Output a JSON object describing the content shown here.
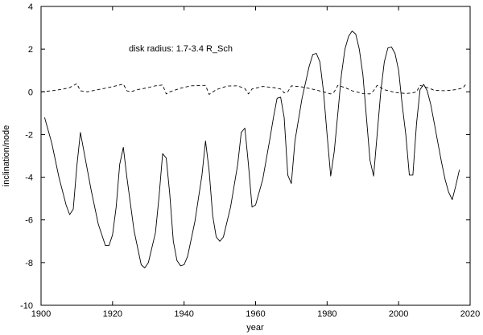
{
  "chart_data": {
    "type": "line",
    "title": "",
    "xlabel": "year",
    "ylabel": "inclination/node",
    "xlim": [
      1900,
      2020
    ],
    "ylim": [
      -10,
      4
    ],
    "grid": false,
    "x_ticks": [
      "1900",
      "1920",
      "1940",
      "1960",
      "1980",
      "2000",
      "2020"
    ],
    "y_ticks": [
      "4",
      "2",
      "0",
      "-2",
      "-4",
      "-6",
      "-8",
      "-10"
    ],
    "annotation": "disk radius: 1.7-3.4 R_Sch",
    "series": [
      {
        "style": "solid",
        "color": "#000000",
        "points": [
          [
            1901,
            -1.2
          ],
          [
            1903,
            -2.4
          ],
          [
            1905,
            -4.0
          ],
          [
            1907,
            -5.3
          ],
          [
            1908,
            -5.75
          ],
          [
            1909,
            -5.5
          ],
          [
            1910,
            -3.5
          ],
          [
            1911,
            -1.9
          ],
          [
            1912,
            -2.8
          ],
          [
            1914,
            -4.6
          ],
          [
            1916,
            -6.2
          ],
          [
            1918,
            -7.2
          ],
          [
            1919,
            -7.2
          ],
          [
            1920,
            -6.7
          ],
          [
            1921,
            -5.4
          ],
          [
            1922,
            -3.4
          ],
          [
            1923,
            -2.6
          ],
          [
            1924,
            -4.0
          ],
          [
            1926,
            -6.5
          ],
          [
            1928,
            -8.1
          ],
          [
            1929,
            -8.25
          ],
          [
            1930,
            -8.0
          ],
          [
            1932,
            -6.6
          ],
          [
            1933,
            -4.9
          ],
          [
            1934,
            -2.9
          ],
          [
            1935,
            -3.1
          ],
          [
            1936,
            -4.8
          ],
          [
            1937,
            -7.0
          ],
          [
            1938,
            -7.9
          ],
          [
            1939,
            -8.15
          ],
          [
            1940,
            -8.1
          ],
          [
            1941,
            -7.7
          ],
          [
            1943,
            -6.1
          ],
          [
            1945,
            -3.9
          ],
          [
            1946,
            -2.3
          ],
          [
            1947,
            -3.7
          ],
          [
            1948,
            -5.8
          ],
          [
            1949,
            -6.8
          ],
          [
            1950,
            -7.0
          ],
          [
            1951,
            -6.8
          ],
          [
            1953,
            -5.4
          ],
          [
            1955,
            -3.4
          ],
          [
            1956,
            -1.9
          ],
          [
            1957,
            -1.7
          ],
          [
            1958,
            -3.4
          ],
          [
            1959,
            -5.4
          ],
          [
            1960,
            -5.3
          ],
          [
            1962,
            -4.1
          ],
          [
            1964,
            -2.2
          ],
          [
            1965,
            -1.2
          ],
          [
            1966,
            -0.3
          ],
          [
            1967,
            -0.25
          ],
          [
            1968,
            -1.2
          ],
          [
            1969,
            -3.9
          ],
          [
            1970,
            -4.3
          ],
          [
            1971,
            -2.3
          ],
          [
            1973,
            -0.3
          ],
          [
            1975,
            1.2
          ],
          [
            1976,
            1.75
          ],
          [
            1977,
            1.8
          ],
          [
            1978,
            1.4
          ],
          [
            1979,
            0.0
          ],
          [
            1980,
            -2.0
          ],
          [
            1981,
            -3.95
          ],
          [
            1982,
            -2.8
          ],
          [
            1983,
            -1.0
          ],
          [
            1984,
            0.8
          ],
          [
            1985,
            2.0
          ],
          [
            1986,
            2.6
          ],
          [
            1987,
            2.85
          ],
          [
            1988,
            2.7
          ],
          [
            1989,
            2.0
          ],
          [
            1990,
            0.8
          ],
          [
            1991,
            -1.2
          ],
          [
            1992,
            -3.2
          ],
          [
            1993,
            -3.95
          ],
          [
            1994,
            -2.0
          ],
          [
            1995,
            0.0
          ],
          [
            1996,
            1.4
          ],
          [
            1997,
            2.05
          ],
          [
            1998,
            2.1
          ],
          [
            1999,
            1.8
          ],
          [
            2000,
            1.0
          ],
          [
            2001,
            -0.6
          ],
          [
            2002,
            -2.0
          ],
          [
            2003,
            -3.9
          ],
          [
            2004,
            -3.9
          ],
          [
            2005,
            -1.5
          ],
          [
            2006,
            0.1
          ],
          [
            2007,
            0.35
          ],
          [
            2008,
            0.05
          ],
          [
            2009,
            -0.6
          ],
          [
            2010,
            -1.5
          ],
          [
            2011,
            -2.4
          ],
          [
            2012,
            -3.3
          ],
          [
            2013,
            -4.1
          ],
          [
            2014,
            -4.7
          ],
          [
            2015,
            -5.05
          ],
          [
            2016,
            -4.4
          ],
          [
            2017,
            -3.65
          ]
        ]
      },
      {
        "style": "dashed",
        "color": "#000000",
        "points": [
          [
            1900,
            0.0
          ],
          [
            1903,
            0.05
          ],
          [
            1906,
            0.12
          ],
          [
            1908,
            0.2
          ],
          [
            1910,
            0.38
          ],
          [
            1911,
            0.05
          ],
          [
            1913,
            0.0
          ],
          [
            1915,
            0.07
          ],
          [
            1918,
            0.17
          ],
          [
            1921,
            0.28
          ],
          [
            1923,
            0.36
          ],
          [
            1924,
            0.05
          ],
          [
            1925,
            0.0
          ],
          [
            1927,
            0.1
          ],
          [
            1930,
            0.2
          ],
          [
            1932,
            0.28
          ],
          [
            1934,
            0.32
          ],
          [
            1935,
            -0.1
          ],
          [
            1936,
            0.0
          ],
          [
            1939,
            0.17
          ],
          [
            1942,
            0.28
          ],
          [
            1945,
            0.3
          ],
          [
            1946,
            0.3
          ],
          [
            1947,
            -0.12
          ],
          [
            1949,
            0.1
          ],
          [
            1952,
            0.27
          ],
          [
            1955,
            0.28
          ],
          [
            1957,
            0.15
          ],
          [
            1958,
            -0.1
          ],
          [
            1959,
            0.13
          ],
          [
            1962,
            0.25
          ],
          [
            1965,
            0.2
          ],
          [
            1967,
            0.13
          ],
          [
            1968,
            -0.05
          ],
          [
            1969,
            0.0
          ],
          [
            1970,
            0.28
          ],
          [
            1973,
            0.23
          ],
          [
            1976,
            0.12
          ],
          [
            1979,
            0.0
          ],
          [
            1981,
            -0.1
          ],
          [
            1982,
            0.0
          ],
          [
            1983,
            0.3
          ],
          [
            1985,
            0.2
          ],
          [
            1987,
            0.05
          ],
          [
            1990,
            -0.08
          ],
          [
            1992,
            -0.1
          ],
          [
            1993,
            0.05
          ],
          [
            1994,
            0.3
          ],
          [
            1996,
            0.1
          ],
          [
            1999,
            -0.03
          ],
          [
            2002,
            -0.08
          ],
          [
            2004,
            -0.05
          ],
          [
            2005,
            0.0
          ],
          [
            2006,
            0.3
          ],
          [
            2008,
            0.2
          ],
          [
            2010,
            0.07
          ],
          [
            2013,
            0.05
          ],
          [
            2016,
            0.1
          ],
          [
            2018,
            0.18
          ],
          [
            2019,
            0.4
          ]
        ]
      }
    ]
  }
}
